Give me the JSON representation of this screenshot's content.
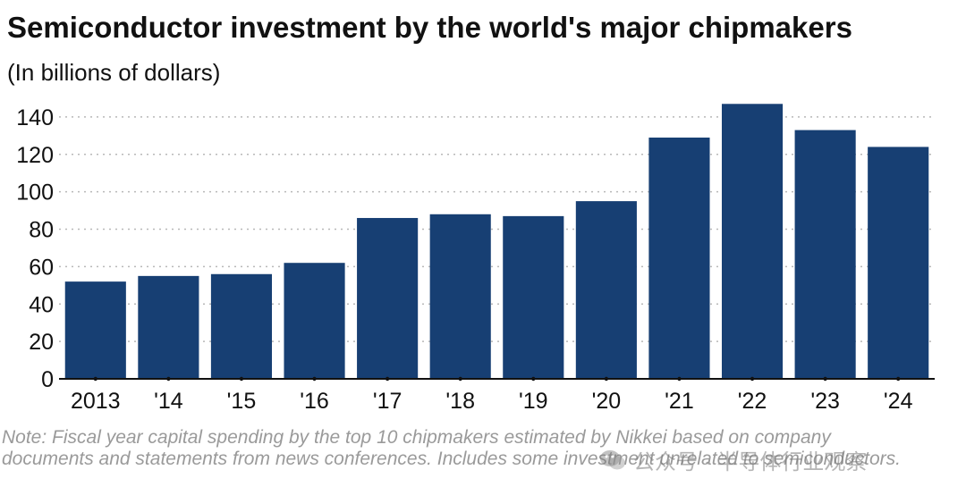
{
  "header": {
    "title": "Semiconductor investment by the world's major chipmakers",
    "subtitle": "(In billions of dollars)"
  },
  "colors": {
    "bar": "#173f73",
    "grid": "#b8b8b8",
    "axis": "#111111"
  },
  "chart_data": {
    "type": "bar",
    "categories": [
      "2013",
      "'14",
      "'15",
      "'16",
      "'17",
      "'18",
      "'19",
      "'20",
      "'21",
      "'22",
      "'23",
      "'24"
    ],
    "series": [
      {
        "name": "Semiconductor investment",
        "values": [
          52,
          55,
          56,
          62,
          86,
          88,
          87,
          95,
          129,
          147,
          133,
          124
        ]
      }
    ],
    "title": "Semiconductor investment by the world's major chipmakers",
    "ylabel": "In billions of dollars",
    "xlabel": "",
    "ylim": [
      0,
      150
    ],
    "yticks": [
      0,
      20,
      40,
      60,
      80,
      100,
      120,
      140
    ],
    "grid": "horizontal dotted"
  },
  "footer": {
    "note": "Note: Fiscal year capital spending by the top 10 chipmakers estimated by Nikkei based on company documents and statements from news conferences. Includes some investment unrelated to semiconductors."
  },
  "watermark": {
    "text": "公众号 · 半导体行业观察",
    "icon": "wechat-icon"
  }
}
